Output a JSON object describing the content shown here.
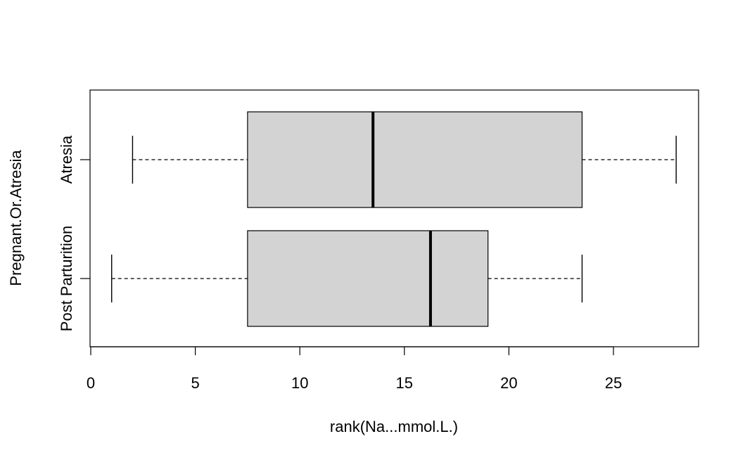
{
  "chart_data": {
    "type": "boxplot",
    "orientation": "horizontal",
    "title": "",
    "xlabel": "rank(Na...mmol.L.)",
    "ylabel": "Pregnant.Or.Atresia",
    "xlim": [
      0,
      29
    ],
    "xticks": [
      0,
      5,
      10,
      15,
      20,
      25
    ],
    "xtick_labels": [
      "0",
      "5",
      "10",
      "15",
      "20",
      "25"
    ],
    "grid": false,
    "legend": "none",
    "colors": {
      "box_fill": "#d3d3d3",
      "stroke": "#000000"
    },
    "groups": [
      {
        "label": "Post Parturition",
        "min": 1,
        "q1": 7.5,
        "median": 16.25,
        "q3": 19.0,
        "max": 23.5
      },
      {
        "label": "Atresia",
        "min": 2,
        "q1": 7.5,
        "median": 13.5,
        "q3": 23.5,
        "max": 28.0
      }
    ]
  }
}
